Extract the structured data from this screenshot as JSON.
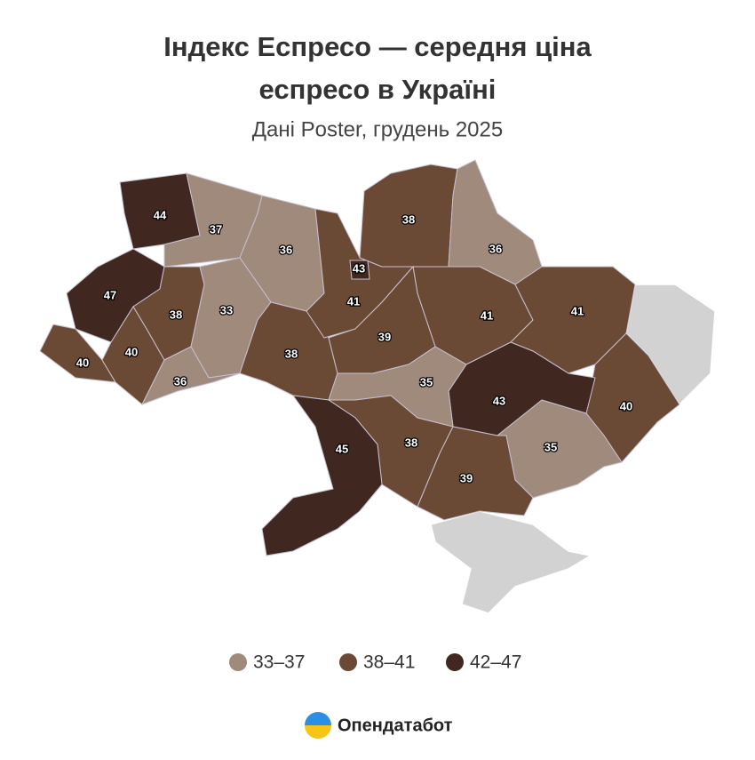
{
  "title": [
    "Індекс Еспресо — середня ціна",
    "еспресо в Україні"
  ],
  "subtitle": "Дані Poster, грудень 2025",
  "map": {
    "type": "choropleth",
    "values": [
      44,
      37,
      36,
      47,
      38,
      33,
      40,
      40,
      36,
      38,
      41,
      43,
      38,
      36,
      41,
      39,
      41,
      40,
      43,
      35,
      35,
      38,
      39,
      45
    ],
    "no_data_color": "#d2d2d2"
  },
  "legend": [
    {
      "label": "33–37",
      "color": "#a08a7c"
    },
    {
      "label": "38–41",
      "color": "#6b4a35"
    },
    {
      "label": "42–47",
      "color": "#402820"
    }
  ],
  "logo": "Опендатабот"
}
